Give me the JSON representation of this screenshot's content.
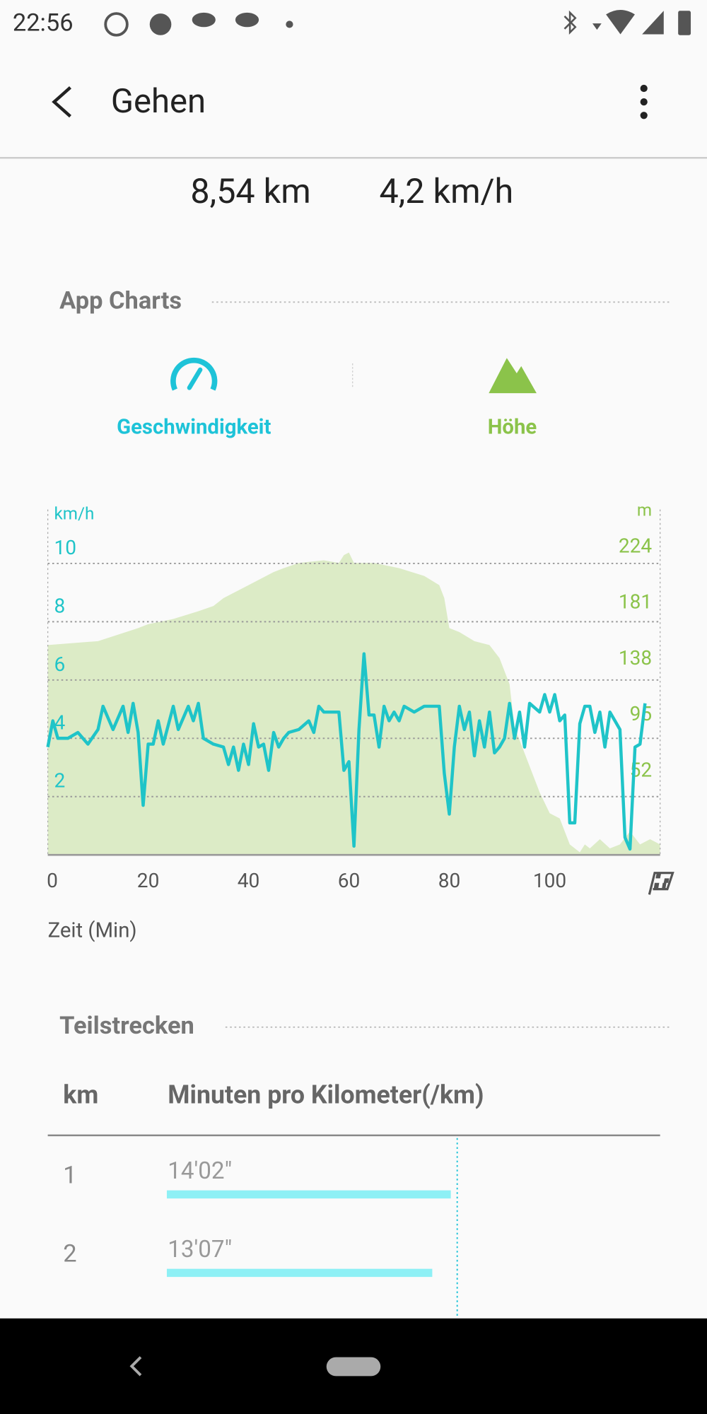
{
  "status_bar": {
    "time": "22:56"
  },
  "header": {
    "title": "Gehen"
  },
  "summary": {
    "distance": "8,54 km",
    "speed": "4,2 km/h"
  },
  "app_charts": {
    "title": "App Charts"
  },
  "chart_data": {
    "type": "line",
    "xlabel": "Zeit (Min)",
    "xlim": [
      0,
      122
    ],
    "xticks": [
      0,
      20,
      40,
      60,
      80,
      100
    ],
    "ylabel": "km/h",
    "ylim": [
      0,
      11.85
    ],
    "yticks": [
      2,
      4,
      6,
      8,
      10
    ],
    "y2label": "m",
    "y2lim": [
      -1,
      264
    ],
    "y2ticks": [
      52,
      95,
      138,
      181,
      224
    ],
    "grid": true,
    "series": [
      {
        "name": "Höhe",
        "color": "#8bc34a",
        "fill": "#dcebc6",
        "axis": "y2",
        "style": "area",
        "x": [
          0,
          10,
          18,
          20,
          25,
          30,
          33,
          35,
          40,
          45,
          47,
          50,
          55,
          58,
          59,
          60,
          61,
          65,
          70,
          75,
          78,
          79,
          80,
          82,
          85,
          88,
          90,
          92,
          93,
          95,
          97,
          98,
          100,
          102,
          104,
          106,
          107,
          108,
          110,
          112,
          114,
          116,
          118,
          120,
          122
        ],
        "values": [
          160,
          163,
          173,
          176,
          180,
          186,
          190,
          196,
          206,
          216,
          219,
          223,
          225,
          223,
          229,
          231,
          223,
          223,
          219,
          213,
          206,
          196,
          173,
          170,
          163,
          160,
          150,
          130,
          97,
          77,
          57,
          47,
          31,
          27,
          7,
          1,
          7,
          4,
          11,
          4,
          7,
          17,
          7,
          11,
          7
        ]
      },
      {
        "name": "Geschwindigkeit",
        "color": "#1fc4c8",
        "style": "line",
        "x": [
          0,
          1,
          2,
          4,
          6,
          8,
          10,
          11,
          13,
          15,
          16,
          17,
          18,
          19,
          20,
          21,
          22,
          23,
          25,
          26,
          28,
          29,
          30,
          31,
          33,
          35,
          36,
          37,
          38,
          39,
          40,
          41,
          42,
          43,
          44,
          45,
          46,
          47,
          48,
          50,
          52,
          53,
          54,
          55,
          56,
          57,
          58,
          59,
          60,
          61,
          62,
          63,
          64,
          65,
          66,
          67,
          68,
          69,
          70,
          71,
          73,
          75,
          77,
          78,
          79,
          80,
          81,
          82,
          83,
          84,
          85,
          86,
          87,
          88,
          89,
          90,
          91,
          92,
          93,
          94,
          95,
          96,
          98,
          99,
          100,
          101,
          102,
          103,
          104,
          105,
          106,
          107,
          108,
          109,
          110,
          111,
          112,
          113,
          114,
          115,
          116,
          117,
          118,
          119
        ],
        "values": [
          3.7,
          4.6,
          4.0,
          4.0,
          4.2,
          3.8,
          4.3,
          5.1,
          4.3,
          5.1,
          4.2,
          5.2,
          4.2,
          1.7,
          3.8,
          3.8,
          4.6,
          3.8,
          5.1,
          4.3,
          5.1,
          4.6,
          5.2,
          4.0,
          3.8,
          3.7,
          3.1,
          3.7,
          2.9,
          3.8,
          3.1,
          4.5,
          3.7,
          3.8,
          2.9,
          4.2,
          3.7,
          4.0,
          4.2,
          4.3,
          4.6,
          4.2,
          5.1,
          4.9,
          4.9,
          4.9,
          4.9,
          2.9,
          3.2,
          0.3,
          4.3,
          6.9,
          4.8,
          4.8,
          3.7,
          5.1,
          4.6,
          4.9,
          4.6,
          5.1,
          4.9,
          5.1,
          5.1,
          5.1,
          2.8,
          1.4,
          3.7,
          5.1,
          4.3,
          4.9,
          3.4,
          4.6,
          3.7,
          4.9,
          3.5,
          3.7,
          4.0,
          5.2,
          4.0,
          4.9,
          3.7,
          5.2,
          4.9,
          5.5,
          4.9,
          5.5,
          4.6,
          4.8,
          1.1,
          1.1,
          4.5,
          5.1,
          5.1,
          4.2,
          4.9,
          3.7,
          4.9,
          4.6,
          4.3,
          0.6,
          0.2,
          3.7,
          3.8,
          5.2
        ]
      }
    ]
  },
  "splits": {
    "title": "Teilstrecken",
    "columns": [
      "km",
      "Minuten pro Kilometer(/km)"
    ],
    "rows": [
      {
        "km": 1,
        "seconds": 842,
        "label": "14'02\""
      },
      {
        "km": 2,
        "seconds": 787,
        "label": "13'07\""
      }
    ]
  }
}
